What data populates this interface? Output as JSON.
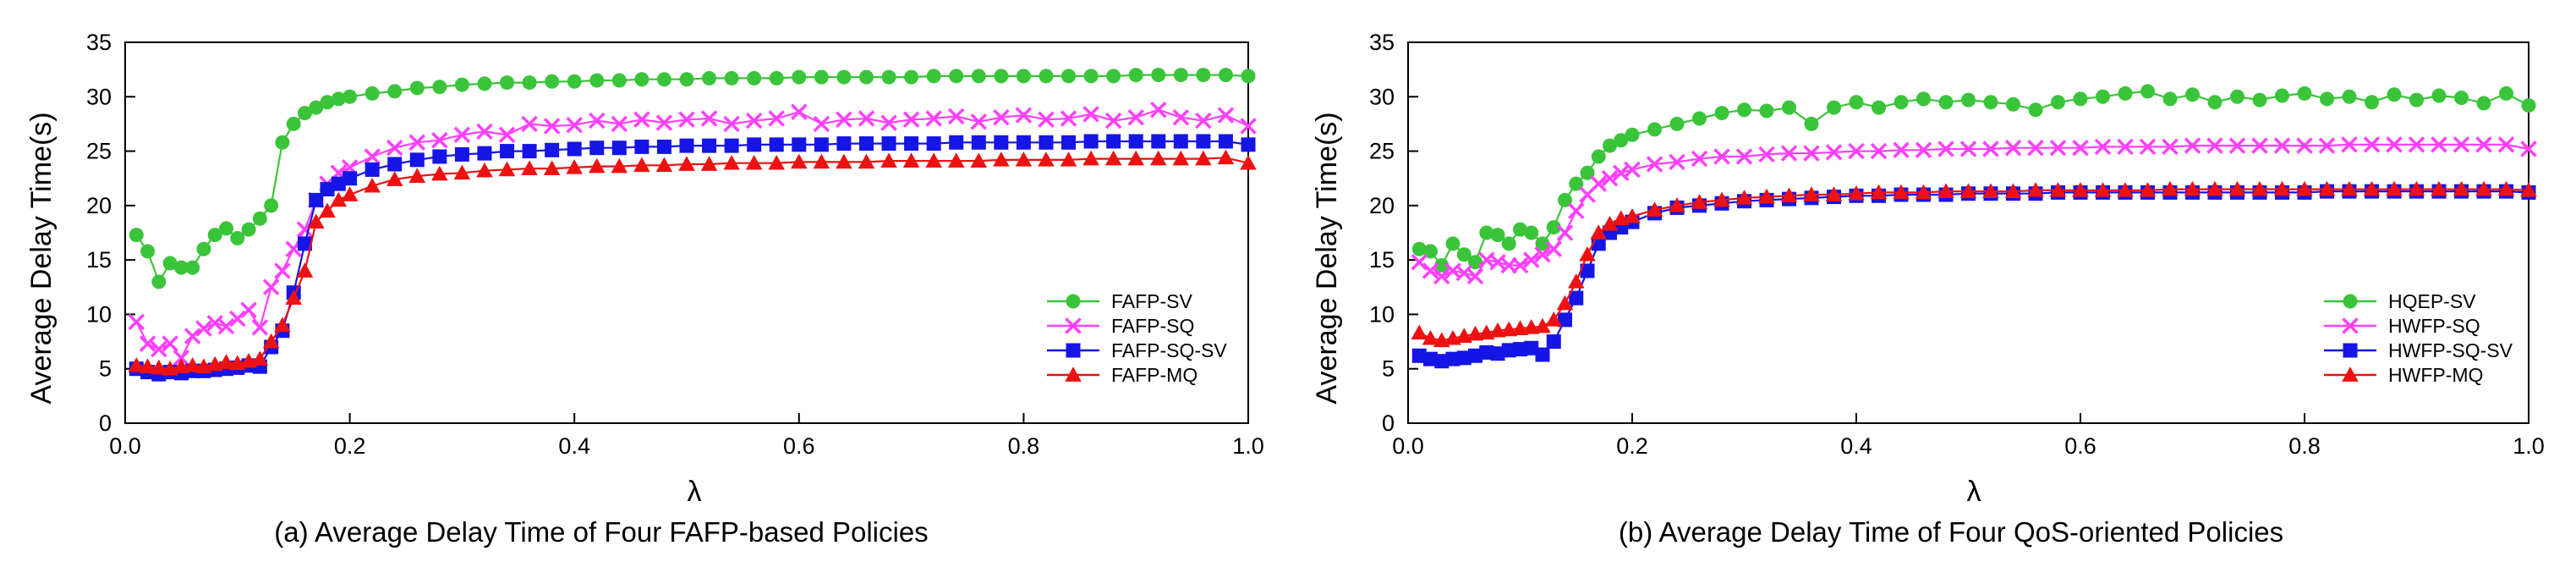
{
  "chart_data": [
    {
      "type": "line",
      "caption": "(a) Average Delay Time of Four FAFP-based Policies",
      "xlabel": "λ",
      "ylabel": "Average Delay Time(s)",
      "xlim": [
        0,
        1
      ],
      "ylim": [
        0,
        35
      ],
      "xticks": [
        0.0,
        0.2,
        0.4,
        0.6,
        0.8,
        1.0
      ],
      "xtick_labels": [
        "0.0",
        "0.2",
        "0.4",
        "0.6",
        "0.8",
        "1.0"
      ],
      "yticks": [
        0,
        5,
        10,
        15,
        20,
        25,
        30,
        35
      ],
      "ytick_labels": [
        "0",
        "5",
        "10",
        "15",
        "20",
        "25",
        "30",
        "35"
      ],
      "legend_position": "lower-right",
      "x": [
        0.01,
        0.02,
        0.03,
        0.04,
        0.05,
        0.06,
        0.07,
        0.08,
        0.09,
        0.1,
        0.11,
        0.12,
        0.13,
        0.14,
        0.15,
        0.16,
        0.17,
        0.18,
        0.19,
        0.2,
        0.22,
        0.24,
        0.26,
        0.28,
        0.3,
        0.32,
        0.34,
        0.36,
        0.38,
        0.4,
        0.42,
        0.44,
        0.46,
        0.48,
        0.5,
        0.52,
        0.54,
        0.56,
        0.58,
        0.6,
        0.62,
        0.64,
        0.66,
        0.68,
        0.7,
        0.72,
        0.74,
        0.76,
        0.78,
        0.8,
        0.82,
        0.84,
        0.86,
        0.88,
        0.9,
        0.92,
        0.94,
        0.96,
        0.98,
        1.0
      ],
      "series": [
        {
          "name": "FAFP-SV",
          "color": "#3ac43a",
          "marker": "circle",
          "values": [
            17.3,
            15.8,
            13.0,
            14.7,
            14.3,
            14.3,
            16.0,
            17.3,
            17.9,
            17.0,
            17.8,
            18.8,
            20.0,
            25.8,
            27.5,
            28.5,
            29.0,
            29.5,
            29.8,
            30.0,
            30.3,
            30.5,
            30.8,
            30.9,
            31.1,
            31.2,
            31.3,
            31.3,
            31.4,
            31.4,
            31.5,
            31.5,
            31.6,
            31.6,
            31.6,
            31.7,
            31.7,
            31.7,
            31.7,
            31.8,
            31.8,
            31.8,
            31.8,
            31.8,
            31.8,
            31.9,
            31.9,
            31.9,
            31.9,
            31.9,
            31.9,
            31.9,
            31.9,
            31.9,
            32.0,
            32.0,
            32.0,
            32.0,
            32.0,
            31.9
          ]
        },
        {
          "name": "FAFP-SQ",
          "color": "#ff40ff",
          "marker": "x",
          "values": [
            9.3,
            7.3,
            6.8,
            7.3,
            6.0,
            8.0,
            8.7,
            9.2,
            8.9,
            9.6,
            10.4,
            8.8,
            12.5,
            14.0,
            16.0,
            17.8,
            20.5,
            22.0,
            23.0,
            23.5,
            24.5,
            25.3,
            25.8,
            26.0,
            26.5,
            26.8,
            26.5,
            27.5,
            27.3,
            27.4,
            27.8,
            27.5,
            27.9,
            27.6,
            27.9,
            28.0,
            27.5,
            27.8,
            28.0,
            28.6,
            27.5,
            27.9,
            28.0,
            27.6,
            27.9,
            28.0,
            28.2,
            27.7,
            28.1,
            28.3,
            27.9,
            28.0,
            28.4,
            27.8,
            28.1,
            28.8,
            28.1,
            27.8,
            28.3,
            27.3
          ]
        },
        {
          "name": "FAFP-SQ-SV",
          "color": "#1515e6",
          "marker": "square",
          "values": [
            5.0,
            4.7,
            4.5,
            4.7,
            4.6,
            4.8,
            4.8,
            4.9,
            5.0,
            5.1,
            5.3,
            5.2,
            7.0,
            8.5,
            12.0,
            16.5,
            20.5,
            21.5,
            22.0,
            22.5,
            23.3,
            23.8,
            24.2,
            24.5,
            24.7,
            24.8,
            25.0,
            25.0,
            25.1,
            25.2,
            25.3,
            25.3,
            25.4,
            25.4,
            25.5,
            25.5,
            25.5,
            25.6,
            25.6,
            25.6,
            25.6,
            25.7,
            25.7,
            25.7,
            25.7,
            25.7,
            25.8,
            25.8,
            25.8,
            25.8,
            25.8,
            25.8,
            25.9,
            25.9,
            25.9,
            25.9,
            25.9,
            25.9,
            25.9,
            25.6
          ]
        },
        {
          "name": "FAFP-MQ",
          "color": "#ee1111",
          "marker": "triangle",
          "values": [
            5.3,
            5.2,
            5.1,
            5.0,
            5.2,
            5.3,
            5.2,
            5.4,
            5.6,
            5.5,
            5.7,
            5.9,
            7.5,
            9.0,
            11.5,
            14.0,
            18.5,
            19.5,
            20.5,
            21.0,
            21.8,
            22.4,
            22.7,
            22.9,
            23.0,
            23.2,
            23.3,
            23.4,
            23.4,
            23.5,
            23.6,
            23.6,
            23.7,
            23.7,
            23.8,
            23.8,
            23.9,
            23.9,
            23.9,
            24.0,
            24.0,
            24.0,
            24.0,
            24.1,
            24.1,
            24.1,
            24.1,
            24.1,
            24.2,
            24.2,
            24.2,
            24.2,
            24.3,
            24.3,
            24.3,
            24.3,
            24.3,
            24.3,
            24.4,
            23.9
          ]
        }
      ]
    },
    {
      "type": "line",
      "caption": "(b) Average Delay Time of Four QoS-oriented Policies",
      "xlabel": "λ",
      "ylabel": "Average Delay Time(s)",
      "xlim": [
        0,
        1
      ],
      "ylim": [
        0,
        35
      ],
      "xticks": [
        0.0,
        0.2,
        0.4,
        0.6,
        0.8,
        1.0
      ],
      "xtick_labels": [
        "0.0",
        "0.2",
        "0.4",
        "0.6",
        "0.8",
        "1.0"
      ],
      "yticks": [
        0,
        5,
        10,
        15,
        20,
        25,
        30,
        35
      ],
      "ytick_labels": [
        "0",
        "5",
        "10",
        "15",
        "20",
        "25",
        "30",
        "35"
      ],
      "legend_position": "lower-right",
      "x": [
        0.01,
        0.02,
        0.03,
        0.04,
        0.05,
        0.06,
        0.07,
        0.08,
        0.09,
        0.1,
        0.11,
        0.12,
        0.13,
        0.14,
        0.15,
        0.16,
        0.17,
        0.18,
        0.19,
        0.2,
        0.22,
        0.24,
        0.26,
        0.28,
        0.3,
        0.32,
        0.34,
        0.36,
        0.38,
        0.4,
        0.42,
        0.44,
        0.46,
        0.48,
        0.5,
        0.52,
        0.54,
        0.56,
        0.58,
        0.6,
        0.62,
        0.64,
        0.66,
        0.68,
        0.7,
        0.72,
        0.74,
        0.76,
        0.78,
        0.8,
        0.82,
        0.84,
        0.86,
        0.88,
        0.9,
        0.92,
        0.94,
        0.96,
        0.98,
        1.0
      ],
      "series": [
        {
          "name": "HQEP-SV",
          "color": "#3ac43a",
          "marker": "circle",
          "values": [
            16.0,
            15.8,
            14.5,
            16.5,
            15.5,
            14.8,
            17.5,
            17.3,
            16.5,
            17.8,
            17.5,
            16.5,
            18.0,
            20.5,
            22.0,
            23.0,
            24.5,
            25.5,
            26.0,
            26.5,
            27.0,
            27.5,
            28.0,
            28.5,
            28.8,
            28.7,
            29.0,
            27.5,
            29.0,
            29.5,
            29.0,
            29.5,
            29.8,
            29.5,
            29.7,
            29.5,
            29.3,
            28.8,
            29.5,
            29.8,
            30.0,
            30.3,
            30.5,
            29.8,
            30.2,
            29.5,
            30.0,
            29.7,
            30.1,
            30.3,
            29.8,
            30.0,
            29.5,
            30.2,
            29.7,
            30.1,
            29.9,
            29.4,
            30.3,
            29.2
          ]
        },
        {
          "name": "HWFP-SQ",
          "color": "#ff40ff",
          "marker": "x",
          "values": [
            14.8,
            14.0,
            13.5,
            14.0,
            13.8,
            13.5,
            15.0,
            14.8,
            14.5,
            14.5,
            15.0,
            15.5,
            16.0,
            17.5,
            19.5,
            21.0,
            22.0,
            22.5,
            23.0,
            23.3,
            23.8,
            24.0,
            24.3,
            24.5,
            24.5,
            24.7,
            24.8,
            24.8,
            24.9,
            25.0,
            25.0,
            25.1,
            25.1,
            25.2,
            25.2,
            25.2,
            25.3,
            25.3,
            25.3,
            25.3,
            25.4,
            25.4,
            25.4,
            25.4,
            25.5,
            25.5,
            25.5,
            25.5,
            25.5,
            25.5,
            25.5,
            25.6,
            25.6,
            25.6,
            25.6,
            25.6,
            25.6,
            25.6,
            25.6,
            25.2
          ]
        },
        {
          "name": "HWFP-SQ-SV",
          "color": "#1515e6",
          "marker": "square",
          "values": [
            6.2,
            5.9,
            5.7,
            5.9,
            6.0,
            6.2,
            6.5,
            6.4,
            6.7,
            6.8,
            6.9,
            6.3,
            7.5,
            9.5,
            11.5,
            14.0,
            16.5,
            17.5,
            18.0,
            18.5,
            19.3,
            19.8,
            20.0,
            20.2,
            20.4,
            20.5,
            20.6,
            20.7,
            20.8,
            20.9,
            20.9,
            21.0,
            21.0,
            21.0,
            21.1,
            21.1,
            21.1,
            21.1,
            21.2,
            21.2,
            21.2,
            21.2,
            21.2,
            21.2,
            21.2,
            21.2,
            21.2,
            21.2,
            21.2,
            21.2,
            21.3,
            21.3,
            21.3,
            21.3,
            21.3,
            21.3,
            21.3,
            21.3,
            21.3,
            21.2
          ]
        },
        {
          "name": "HWFP-MQ",
          "color": "#ee1111",
          "marker": "triangle",
          "values": [
            8.3,
            7.8,
            7.6,
            7.8,
            8.0,
            8.2,
            8.3,
            8.5,
            8.6,
            8.7,
            8.8,
            8.9,
            9.5,
            11.0,
            13.0,
            15.5,
            17.5,
            18.3,
            18.8,
            19.0,
            19.6,
            20.0,
            20.3,
            20.5,
            20.7,
            20.8,
            20.9,
            21.0,
            21.0,
            21.1,
            21.2,
            21.2,
            21.2,
            21.3,
            21.3,
            21.3,
            21.3,
            21.4,
            21.4,
            21.4,
            21.4,
            21.4,
            21.4,
            21.5,
            21.5,
            21.5,
            21.5,
            21.5,
            21.5,
            21.5,
            21.5,
            21.5,
            21.5,
            21.5,
            21.5,
            21.5,
            21.5,
            21.5,
            21.5,
            21.4
          ]
        }
      ]
    }
  ]
}
